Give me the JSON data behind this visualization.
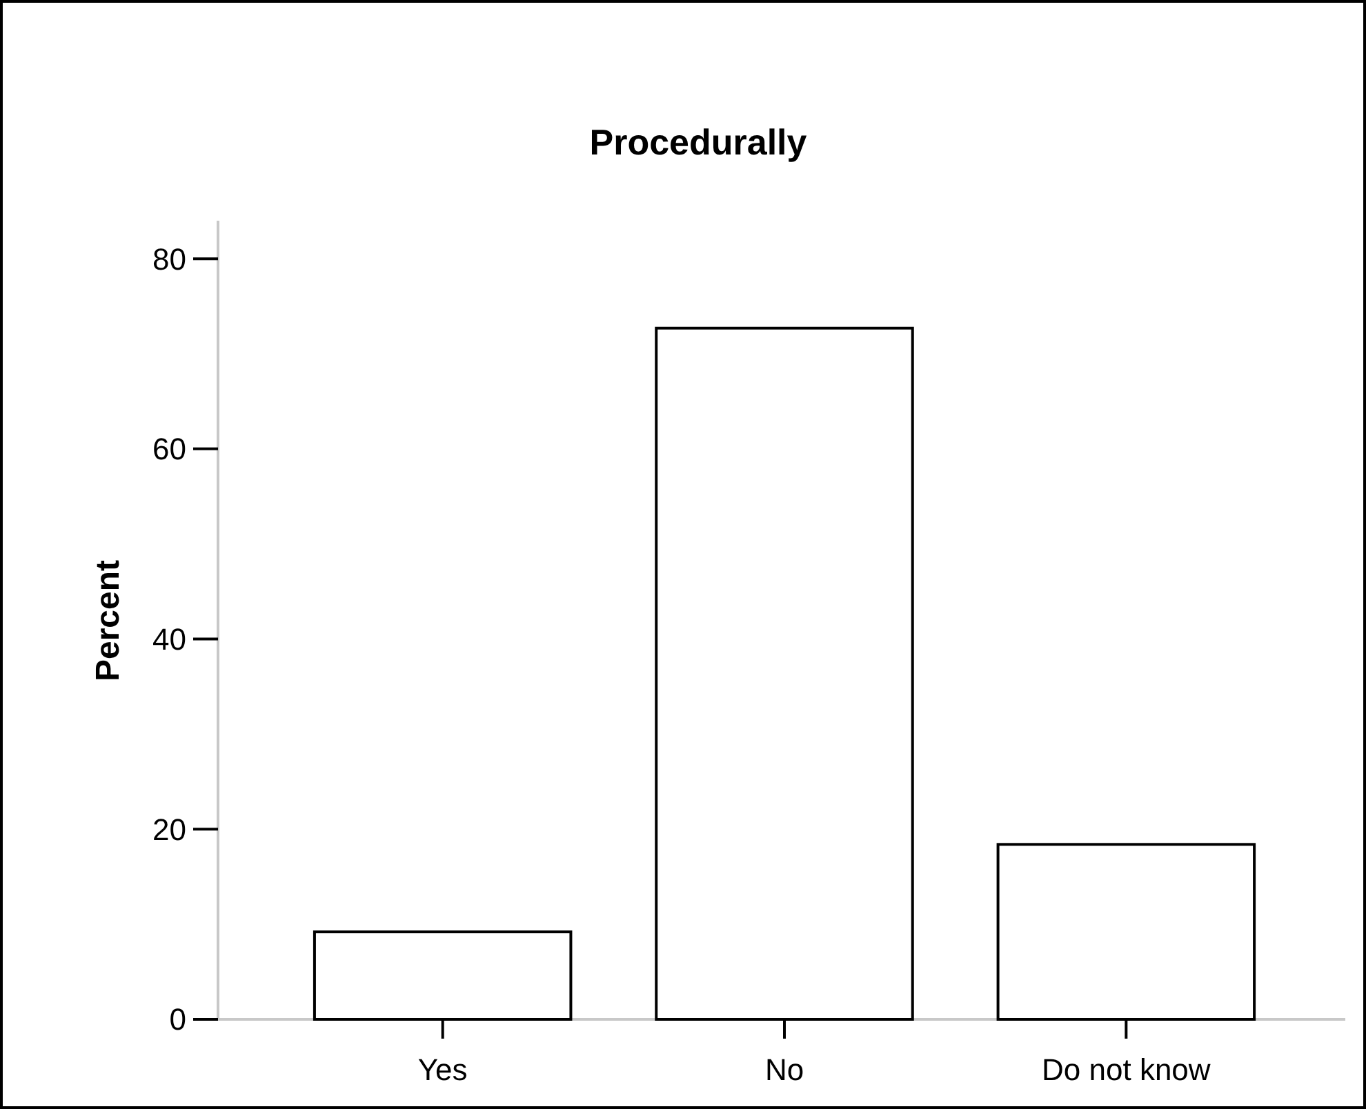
{
  "chart_data": {
    "type": "bar",
    "title": "Procedurally",
    "ylabel": "Percent",
    "categories": [
      "Yes",
      "No",
      "Do not know"
    ],
    "values": [
      9.2,
      72.7,
      18.4
    ],
    "color": "#ffffff",
    "ylim": [
      0,
      84
    ],
    "yticks": [
      0,
      20,
      40,
      60,
      80
    ],
    "grid": false
  }
}
